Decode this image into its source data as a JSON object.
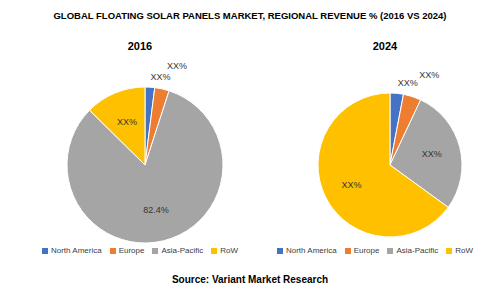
{
  "title": "GLOBAL FLOATING SOLAR PANELS MARKET, REGIONAL REVENUE % (2016 VS 2024)",
  "source": "Source: Variant Market Research",
  "chart_data": [
    {
      "type": "pie",
      "title": "2016",
      "categories": [
        "North America",
        "Europe",
        "Asia-Pacific",
        "RoW"
      ],
      "values": [
        2,
        3,
        82.4,
        12.6
      ],
      "value_labels": [
        "XX%",
        "XX%",
        "82.4%",
        "XX%"
      ],
      "colors": [
        "#4472c4",
        "#ed7d31",
        "#a5a5a5",
        "#ffc000"
      ],
      "data_labels": true,
      "legend": "bottom"
    },
    {
      "type": "pie",
      "title": "2024",
      "categories": [
        "North America",
        "Europe",
        "Asia-Pacific",
        "RoW"
      ],
      "values": [
        3,
        4,
        28,
        65
      ],
      "value_labels": [
        "XX%",
        "XX%",
        "XX%",
        "XX%"
      ],
      "colors": [
        "#4472c4",
        "#ed7d31",
        "#a5a5a5",
        "#ffc000"
      ],
      "data_labels": true,
      "legend": "bottom"
    }
  ]
}
